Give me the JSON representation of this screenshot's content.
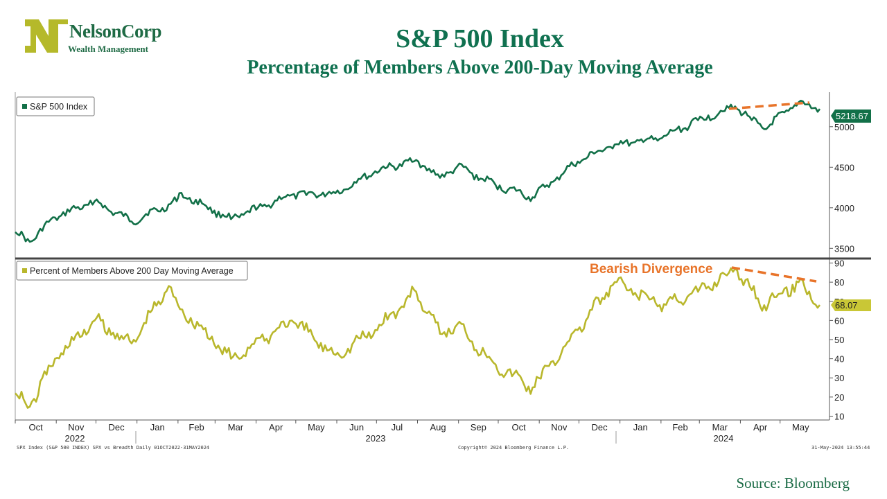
{
  "header": {
    "logo_name": "NelsonCorp",
    "logo_sub": "Wealth Management",
    "title": "S&P 500 Index",
    "subtitle": "Percentage of Members Above 200-Day Moving Average"
  },
  "footer": {
    "left": "SPX Index (S&P 500 INDEX) SPX vs Breadth  Daily 01OCT2022-31MAY2024",
    "center": "Copyright© 2024 Bloomberg Finance L.P.",
    "right": "31-May-2024 13:55:44",
    "source": "Source: Bloomberg"
  },
  "colors": {
    "brand": "#107150",
    "spx": "#127048",
    "breadth": "#b9b72c",
    "annotation": "#e8742a"
  },
  "x_axis": {
    "months": [
      "Oct",
      "Nov",
      "Dec",
      "Jan",
      "Feb",
      "Mar",
      "Apr",
      "May",
      "Jun",
      "Jul",
      "Aug",
      "Sep",
      "Oct",
      "Nov",
      "Dec",
      "Jan",
      "Feb",
      "Mar",
      "Apr",
      "May"
    ],
    "years": [
      "2022",
      "2023",
      "2024"
    ]
  },
  "chart_data": [
    {
      "type": "line",
      "series": [
        {
          "name": "S&P 500 Index",
          "last_value_label": "5218.67",
          "x": [
            "2022-10-01",
            "2022-10-12",
            "2022-10-31",
            "2022-11-30",
            "2022-12-28",
            "2023-01-31",
            "2023-02-02",
            "2023-03-13",
            "2023-04-28",
            "2023-05-31",
            "2023-06-30",
            "2023-07-31",
            "2023-08-18",
            "2023-08-31",
            "2023-09-29",
            "2023-10-27",
            "2023-11-30",
            "2023-12-28",
            "2024-01-31",
            "2024-02-29",
            "2024-03-28",
            "2024-04-19",
            "2024-05-15",
            "2024-05-31"
          ],
          "values": [
            3700,
            3580,
            3880,
            4080,
            3830,
            4080,
            4180,
            3860,
            4160,
            4180,
            4450,
            4590,
            4370,
            4510,
            4280,
            4130,
            4570,
            4780,
            4850,
            5080,
            5250,
            4970,
            5300,
            5218.67
          ]
        }
      ],
      "ylim": [
        3400,
        5400
      ],
      "yticks": [
        3500,
        4000,
        4500,
        5000
      ],
      "annotations": []
    },
    {
      "type": "line",
      "series": [
        {
          "name": "Percent of Members Above 200 Day Moving Average",
          "last_value_label": "68.07",
          "x": [
            "2022-10-01",
            "2022-10-12",
            "2022-10-31",
            "2022-11-30",
            "2022-12-28",
            "2023-01-25",
            "2023-02-01",
            "2023-03-13",
            "2023-04-28",
            "2023-05-31",
            "2023-06-30",
            "2023-07-31",
            "2023-08-18",
            "2023-08-31",
            "2023-09-29",
            "2023-10-27",
            "2023-11-30",
            "2023-12-28",
            "2024-01-31",
            "2024-02-29",
            "2024-03-28",
            "2024-04-19",
            "2024-05-15",
            "2024-05-31"
          ],
          "values": [
            22,
            15,
            40,
            60,
            48,
            78,
            68,
            40,
            60,
            42,
            55,
            75,
            53,
            58,
            37,
            25,
            55,
            80,
            68,
            75,
            87,
            68,
            80,
            68.07
          ]
        }
      ],
      "ylim": [
        8,
        92
      ],
      "yticks": [
        10,
        20,
        30,
        40,
        50,
        60,
        70,
        80,
        90
      ],
      "annotations": [
        "Bearish Divergence"
      ]
    }
  ]
}
